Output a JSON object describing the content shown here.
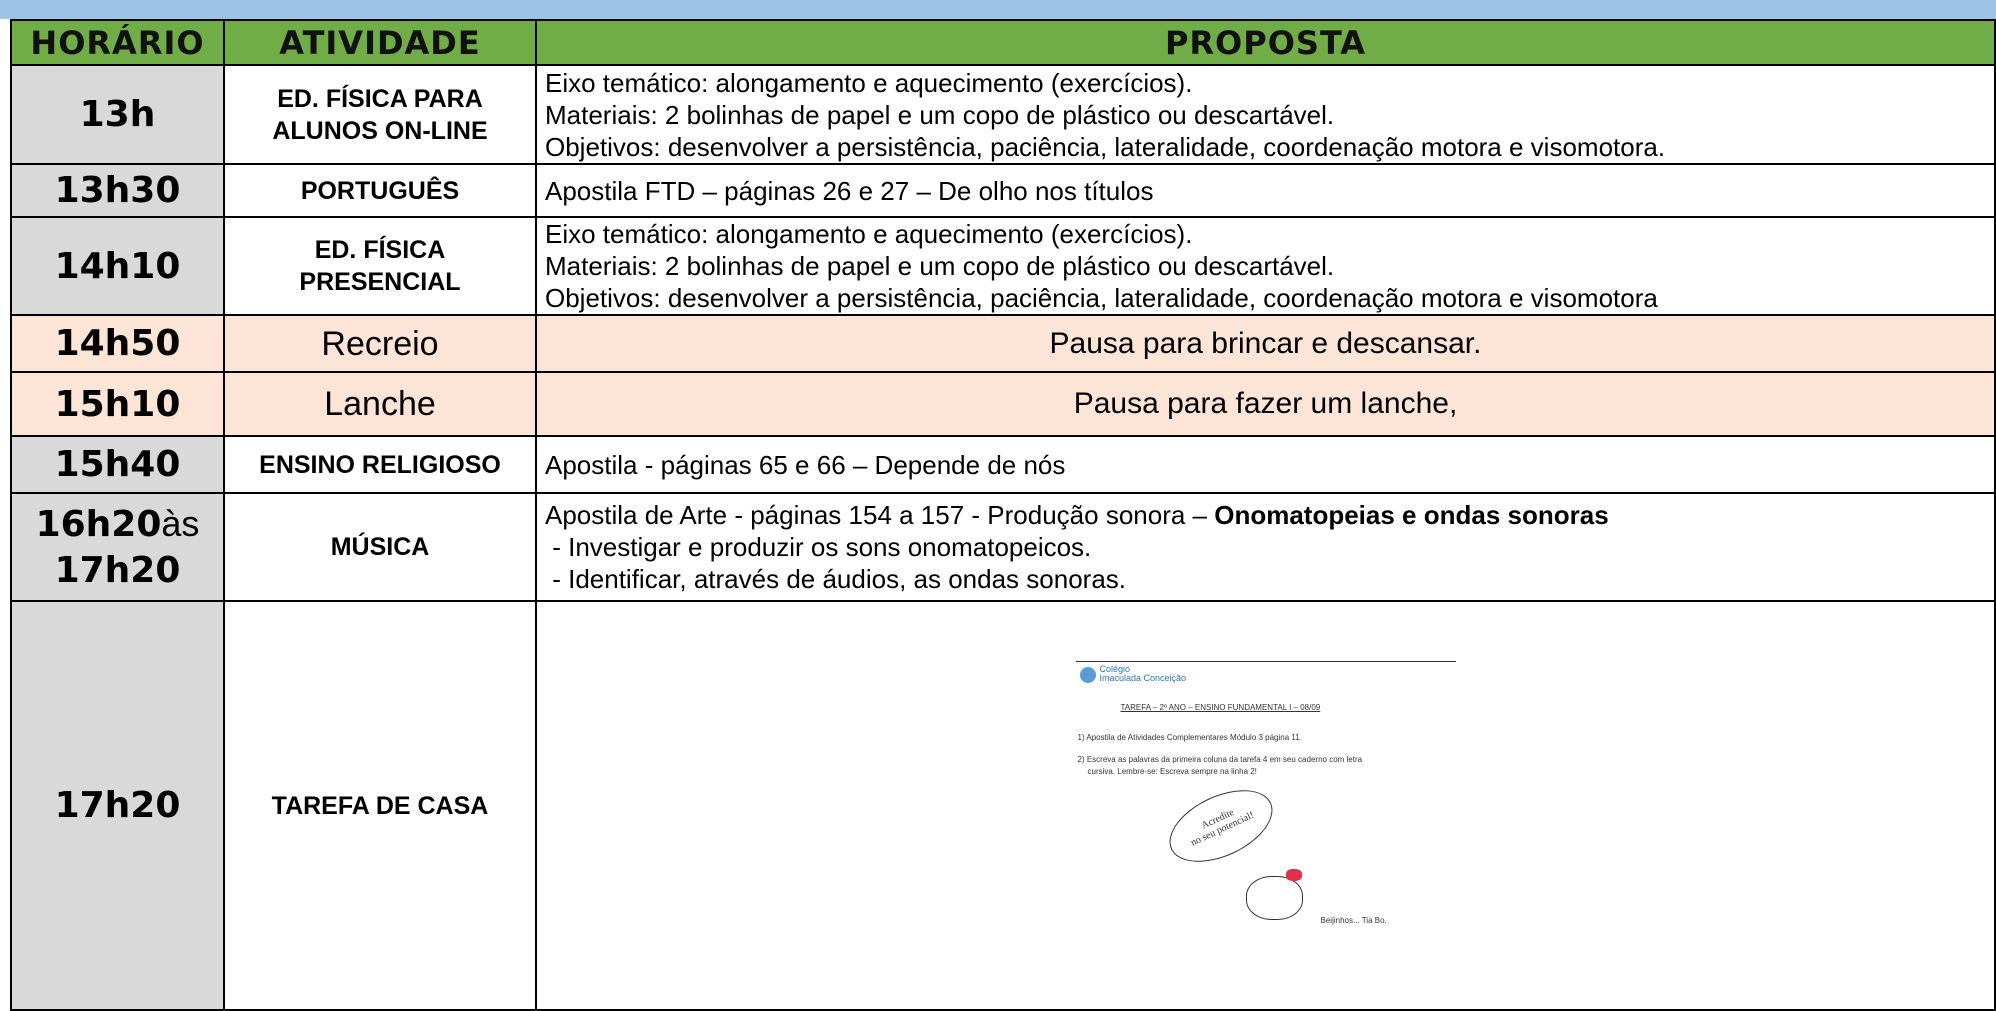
{
  "header": {
    "columns": [
      "HORÁRIO",
      "ATIVIDADE",
      "PROPOSTA"
    ]
  },
  "rows": [
    {
      "time": "13h",
      "activity": [
        "ED. FÍSICA PARA",
        "ALUNOS ON-LINE"
      ],
      "proposal": [
        "Eixo temático: alongamento e aquecimento (exercícios).",
        "Materiais: 2 bolinhas de papel e um copo de plástico ou descartável.",
        "Objetivos: desenvolver a persistência, paciência, lateralidade, coordenação motora e visomotora."
      ]
    },
    {
      "time": "13h30",
      "activity": [
        "PORTUGUÊS"
      ],
      "proposal": [
        "Apostila FTD – páginas 26 e 27 – De olho nos títulos"
      ]
    },
    {
      "time": "14h10",
      "activity": [
        "ED. FÍSICA",
        "PRESENCIAL"
      ],
      "proposal": [
        "Eixo temático: alongamento e aquecimento (exercícios).",
        "Materiais: 2 bolinhas de papel e um copo de plástico ou descartável.",
        "Objetivos: desenvolver a persistência, paciência, lateralidade, coordenação motora e visomotora"
      ]
    },
    {
      "time": "14h50",
      "activity": [
        "Recreio"
      ],
      "proposal": [
        "Pausa para brincar e descansar."
      ]
    },
    {
      "time": "15h10",
      "activity": [
        "Lanche"
      ],
      "proposal": [
        "Pausa para fazer um lanche,"
      ]
    },
    {
      "time": "15h40",
      "activity": [
        "ENSINO RELIGIOSO"
      ],
      "proposal": [
        "Apostila - páginas 65 e 66 – Depende de nós"
      ]
    },
    {
      "time": "16h20",
      "time_connector": "às",
      "time_end": "17h20",
      "activity": [
        "MÚSICA"
      ],
      "proposal_lead": "Apostila de Arte - páginas 154 a 157 - Produção sonora – ",
      "proposal_bold": "Onomatopeias e ondas sonoras",
      "proposal": [
        " - Investigar e produzir os sons onomatopeicos.",
        " - Identificar, através de áudios, as ondas sonoras."
      ]
    },
    {
      "time": "17h20",
      "activity": [
        "TAREFA DE CASA"
      ],
      "attachment": {
        "school": [
          "Colégio",
          "Imaculada Conceição"
        ],
        "title": "TAREFA – 2º ANO – ENSINO FUNDAMENTAL I – 08/09",
        "items": [
          "1) Apostila de Atividades Complementares Módulo 3 página 11.",
          "2) Escreva as palavras da primeira coluna da tarefa 4 em seu caderno com letra",
          "cursiva. Lembre-se: Escreva sempre na linha 2!"
        ],
        "bubble": [
          "Acredite",
          "no seu potencial!"
        ],
        "signature": "Beijinhos... Tia Bo."
      }
    }
  ]
}
